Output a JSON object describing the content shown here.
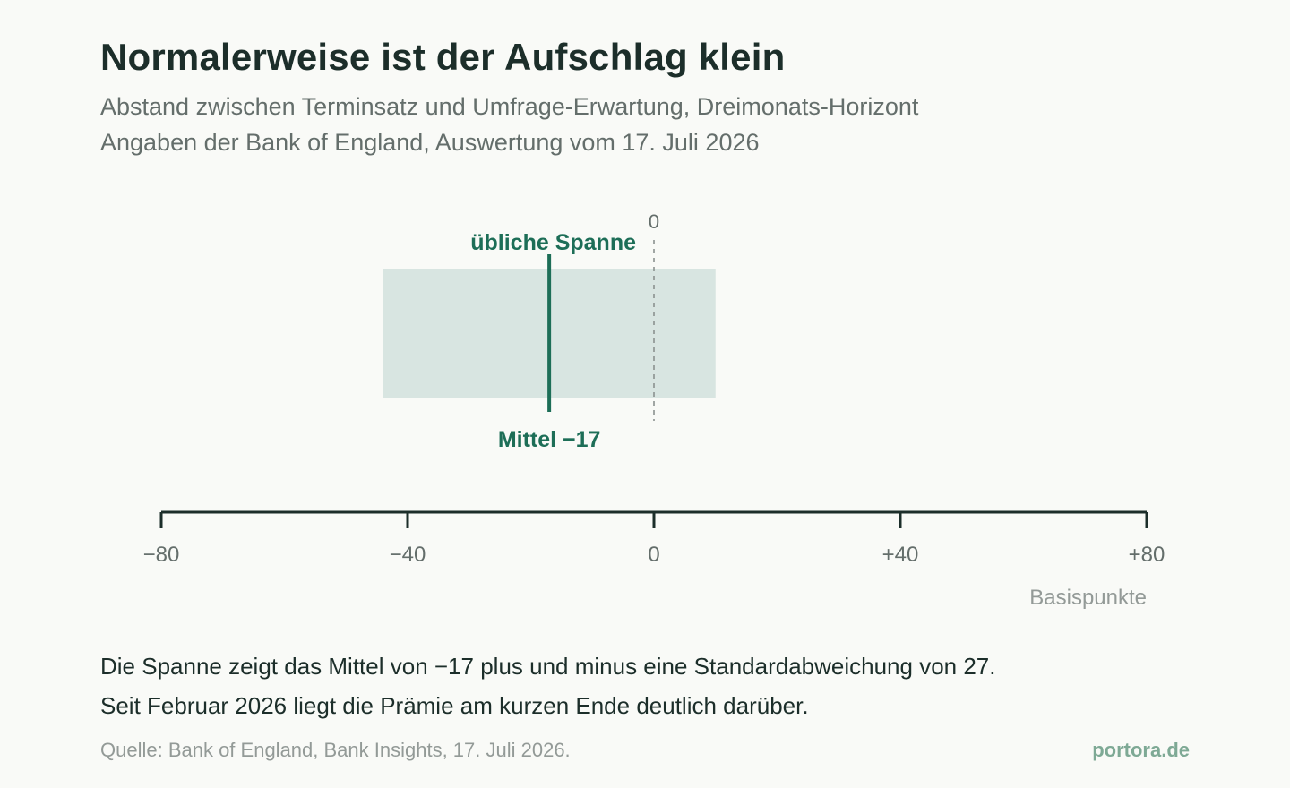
{
  "header": {
    "title": "Normalerweise ist der Aufschlag klein",
    "subtitle_line1": "Abstand zwischen Terminsatz und Umfrage-Erwartung, Dreimonats-Horizont",
    "subtitle_line2": "Angaben der Bank of England, Auswertung vom 17. Juli 2026"
  },
  "chart_data": {
    "type": "range",
    "xlim": [
      -80,
      80
    ],
    "xticks": [
      -80,
      -40,
      0,
      40,
      80
    ],
    "xtick_labels": [
      "−80",
      "−40",
      "0",
      "+40",
      "+80"
    ],
    "xlabel": "Basispunkte",
    "range": {
      "low": -44,
      "high": 10,
      "label": "übliche Spanne",
      "color": "#d8e5e1"
    },
    "mean": {
      "value": -17,
      "label": "Mittel −17",
      "color": "#1d6e57"
    },
    "zero_line": {
      "value": 0,
      "label": "0"
    }
  },
  "notes": {
    "line1": "Die Spanne zeigt das Mittel von −17 plus und minus eine Standardabweichung von 27.",
    "line2": "Seit Februar 2026 liegt die Prämie am kurzen Ende deutlich darüber."
  },
  "footer": {
    "source": "Quelle: Bank of England, Bank Insights, 17. Juli 2026.",
    "brand": "portora.de"
  }
}
